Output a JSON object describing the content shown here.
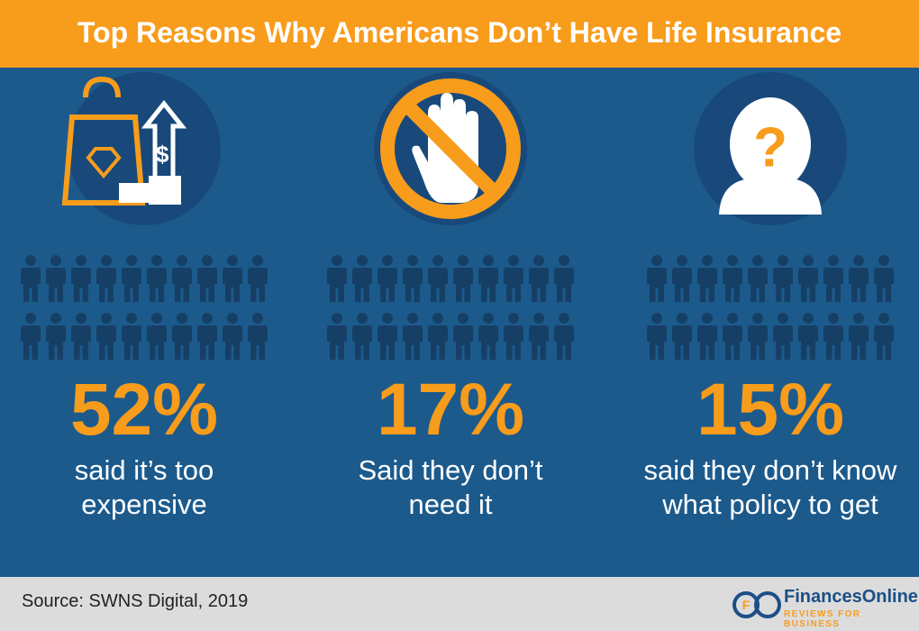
{
  "chart_data": {
    "type": "pictogram",
    "title": "Top Reasons Why Americans Don’t Have Life Insurance",
    "categories": [
      "said it’s too expensive",
      "Said they don’t need it",
      "said they don’t know what policy to get"
    ],
    "values": [
      52,
      17,
      15
    ],
    "value_labels": [
      "52%",
      "17%",
      "15%"
    ],
    "color": "#f89c1c"
  },
  "footer": {
    "source": "Source: SWNS Digital, 2019",
    "brand": "FinancesOnline",
    "tagline": "REVIEWS FOR BUSINESS"
  }
}
